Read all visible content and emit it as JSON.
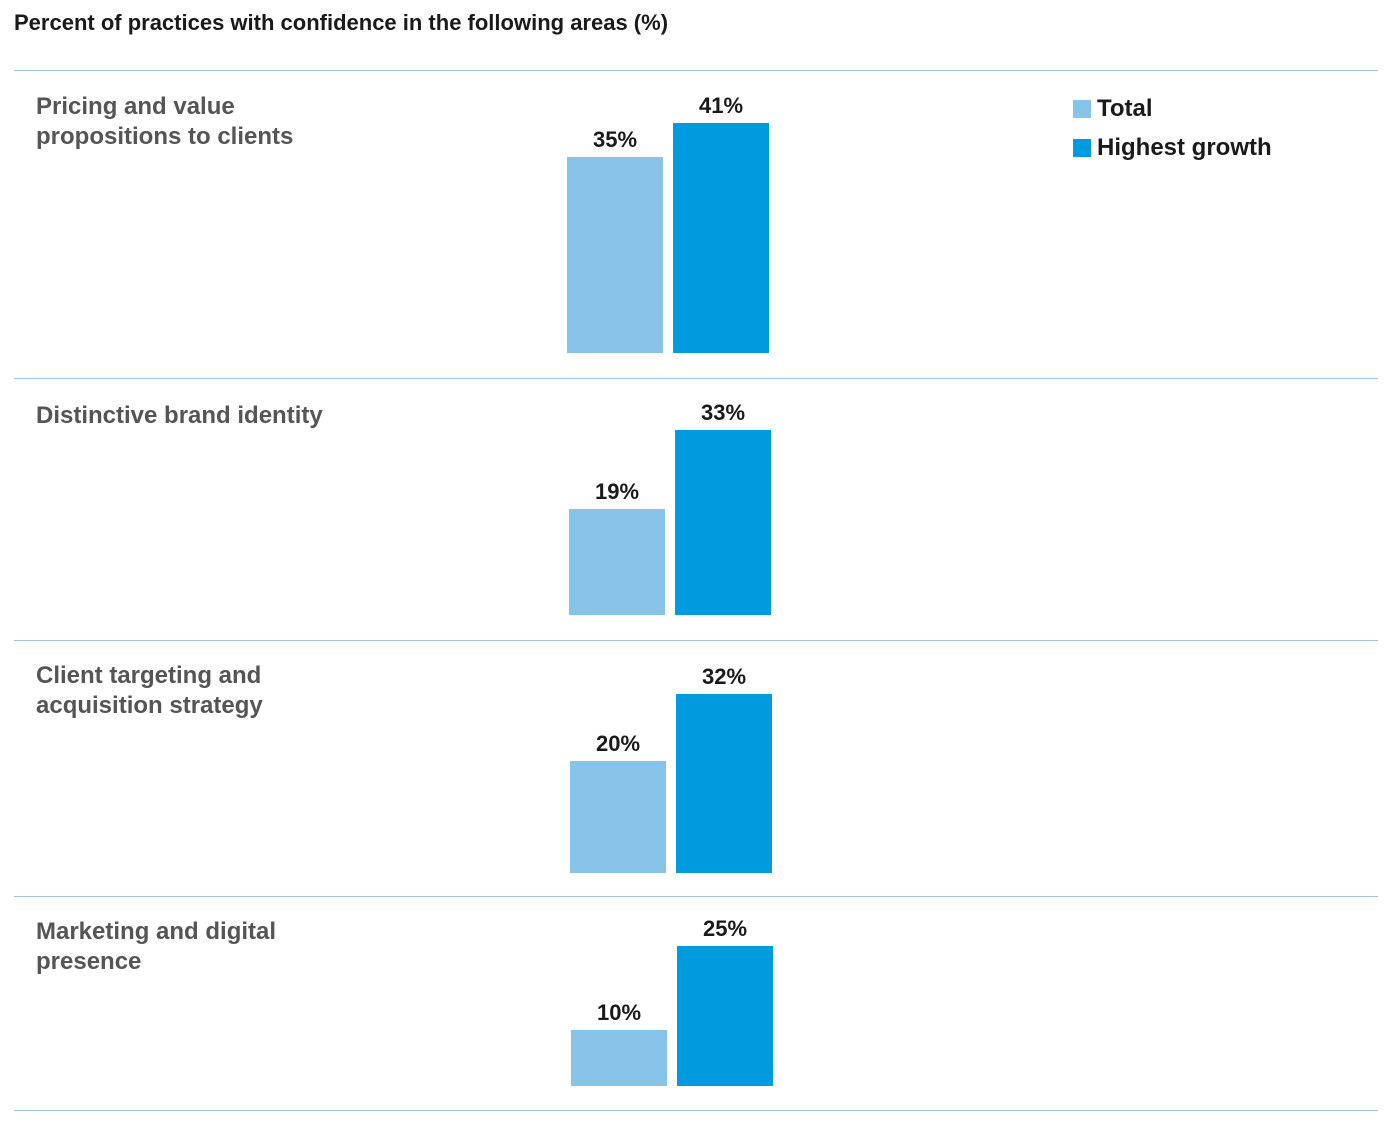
{
  "title": "Percent of practices with confidence in the following areas (%)",
  "colors": {
    "total": "#88c4ea",
    "highest_growth": "#009ade",
    "divider": "#9ec9d6"
  },
  "legend": [
    {
      "label": "Total",
      "color": "#88c4ea"
    },
    {
      "label": "Highest growth",
      "color": "#009ade"
    }
  ],
  "chart_data": {
    "type": "bar",
    "title": "Percent of practices with confidence in the following areas (%)",
    "categories": [
      "Pricing and value propositions to clients",
      "Distinctive brand identity",
      "Client targeting and acquisition strategy",
      "Marketing and digital presence"
    ],
    "series": [
      {
        "name": "Total",
        "values": [
          35,
          19,
          20,
          10
        ],
        "labels": [
          "35%",
          "19%",
          "20%",
          "10%"
        ]
      },
      {
        "name": "Highest growth",
        "values": [
          41,
          33,
          32,
          25
        ],
        "labels": [
          "41%",
          "33%",
          "32%",
          "25%"
        ]
      }
    ],
    "legend_position": "top-right",
    "grid": false
  }
}
